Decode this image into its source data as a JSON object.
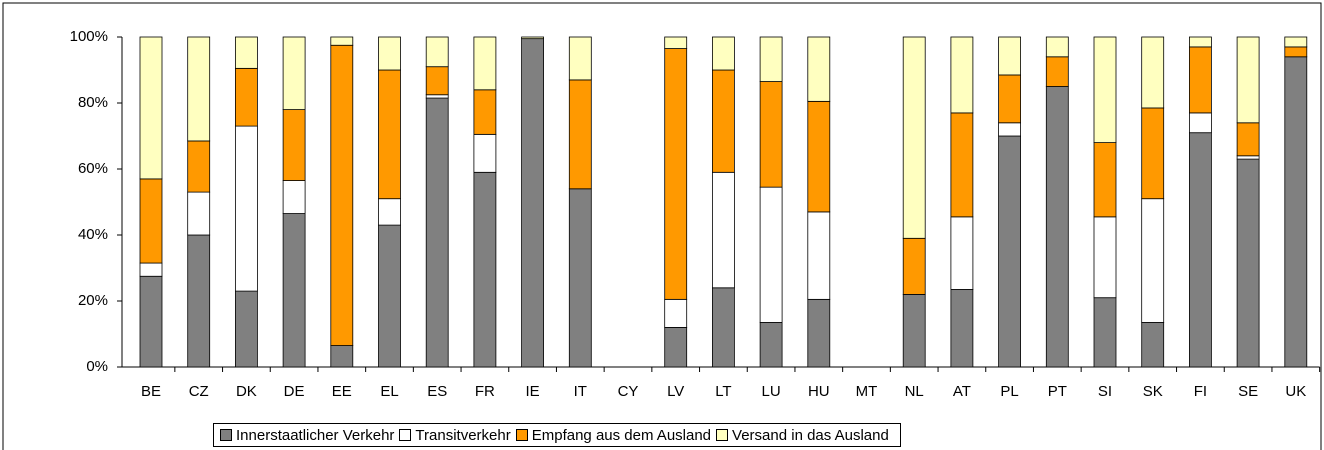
{
  "chart_data": {
    "type": "stacked-bar",
    "categories": [
      "BE",
      "CZ",
      "DK",
      "DE",
      "EE",
      "EL",
      "ES",
      "FR",
      "IE",
      "IT",
      "CY",
      "LV",
      "LT",
      "LU",
      "HU",
      "MT",
      "NL",
      "AT",
      "PL",
      "PT",
      "SI",
      "SK",
      "FI",
      "SE",
      "UK"
    ],
    "series": [
      {
        "name": "Innerstaatlicher Verkehr",
        "color": "#808080",
        "values": [
          27.5,
          40,
          23,
          46.5,
          6.5,
          43,
          81.5,
          59,
          99.5,
          54,
          null,
          12,
          24,
          13.5,
          20.5,
          null,
          22,
          23.5,
          70,
          85,
          21,
          13.5,
          71,
          63,
          94
        ]
      },
      {
        "name": "Transitverkehr",
        "color": "#ffffff",
        "values": [
          4,
          13,
          50,
          10,
          0,
          8,
          1,
          11.5,
          0,
          0,
          null,
          8.5,
          35,
          41,
          26.5,
          null,
          0,
          22,
          4,
          0,
          24.5,
          37.5,
          6,
          1,
          0
        ]
      },
      {
        "name": "Empfang aus dem Ausland",
        "color": "#ff9900",
        "values": [
          25.5,
          15.5,
          17.5,
          21.5,
          91,
          39,
          8.5,
          13.5,
          0,
          33,
          null,
          76,
          31,
          32,
          33.5,
          null,
          17,
          31.5,
          14.5,
          9,
          22.5,
          27.5,
          20,
          10,
          3
        ]
      },
      {
        "name": "Versand in das Ausland",
        "color": "#ffffc0",
        "values": [
          43,
          31.5,
          9.5,
          22,
          2.5,
          10,
          9,
          16,
          0.5,
          13,
          null,
          3.5,
          10,
          13.5,
          19.5,
          null,
          61,
          23,
          11.5,
          6,
          32,
          21.5,
          3,
          26,
          3
        ]
      }
    ],
    "ylim": [
      0,
      100
    ],
    "yticks": [
      {
        "value": 0,
        "label": "0%"
      },
      {
        "value": 20,
        "label": "20%"
      },
      {
        "value": 40,
        "label": "40%"
      },
      {
        "value": 60,
        "label": "60%"
      },
      {
        "value": 80,
        "label": "80%"
      },
      {
        "value": 100,
        "label": "100%"
      }
    ],
    "grid": false
  }
}
